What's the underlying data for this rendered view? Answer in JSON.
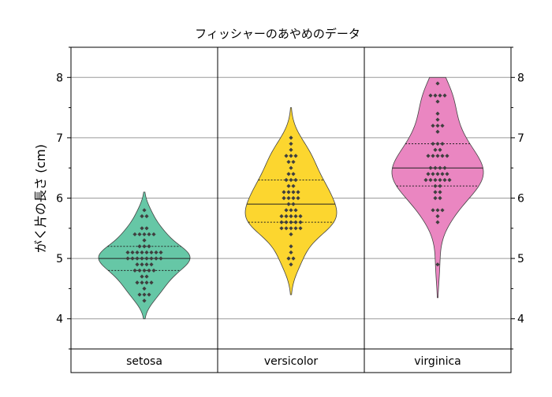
{
  "chart_data": {
    "type": "violin",
    "title": "フィッシャーのあやめのデータ",
    "xlabel": "",
    "ylabel": "がく片の長さ (cm)",
    "ylim": [
      3.5,
      8.5
    ],
    "yticks": [
      4,
      5,
      6,
      7,
      8
    ],
    "grid": true,
    "categories": [
      "setosa",
      "versicolor",
      "virginica"
    ],
    "series": [
      {
        "color": "#66c7a6",
        "median": 5.0,
        "q1": 4.8,
        "q3": 5.2,
        "kde_min": 4.0,
        "kde_max": 6.1,
        "values": [
          4.3,
          4.4,
          4.4,
          4.4,
          4.5,
          4.6,
          4.6,
          4.6,
          4.6,
          4.7,
          4.7,
          4.8,
          4.8,
          4.8,
          4.8,
          4.8,
          4.9,
          4.9,
          4.9,
          4.9,
          5.0,
          5.0,
          5.0,
          5.0,
          5.0,
          5.0,
          5.0,
          5.0,
          5.1,
          5.1,
          5.1,
          5.1,
          5.1,
          5.1,
          5.1,
          5.1,
          5.2,
          5.2,
          5.2,
          5.3,
          5.4,
          5.4,
          5.4,
          5.4,
          5.4,
          5.5,
          5.5,
          5.7,
          5.7,
          5.8
        ]
      },
      {
        "color": "#fcd62f",
        "median": 5.9,
        "q1": 5.6,
        "q3": 6.3,
        "kde_min": 4.4,
        "kde_max": 7.5,
        "values": [
          4.9,
          5.0,
          5.0,
          5.1,
          5.2,
          5.4,
          5.5,
          5.5,
          5.5,
          5.5,
          5.5,
          5.6,
          5.6,
          5.6,
          5.6,
          5.6,
          5.7,
          5.7,
          5.7,
          5.7,
          5.7,
          5.8,
          5.8,
          5.8,
          5.9,
          5.9,
          6.0,
          6.0,
          6.0,
          6.0,
          6.1,
          6.1,
          6.1,
          6.1,
          6.2,
          6.2,
          6.3,
          6.3,
          6.3,
          6.4,
          6.4,
          6.5,
          6.6,
          6.6,
          6.7,
          6.7,
          6.7,
          6.8,
          6.9,
          7.0
        ]
      },
      {
        "color": "#ea86c1",
        "median": 6.5,
        "q1": 6.2,
        "q3": 6.9,
        "kde_min": 4.35,
        "kde_max": 8.0,
        "values": [
          4.9,
          5.6,
          5.7,
          5.8,
          5.8,
          5.8,
          6.0,
          6.0,
          6.1,
          6.1,
          6.2,
          6.2,
          6.3,
          6.3,
          6.3,
          6.3,
          6.3,
          6.3,
          6.4,
          6.4,
          6.4,
          6.4,
          6.4,
          6.5,
          6.5,
          6.5,
          6.5,
          6.7,
          6.7,
          6.7,
          6.7,
          6.7,
          6.8,
          6.8,
          6.9,
          6.9,
          6.9,
          7.1,
          7.2,
          7.2,
          7.2,
          7.3,
          7.4,
          7.6,
          7.7,
          7.7,
          7.7,
          7.7,
          7.9
        ]
      }
    ]
  }
}
